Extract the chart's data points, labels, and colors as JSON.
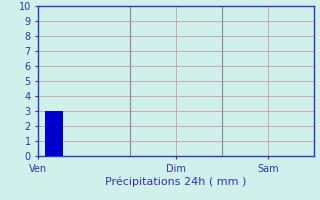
{
  "title": "",
  "xlabel": "Précipitations 24h ( mm )",
  "ylabel": "",
  "background_color": "#cff0eb",
  "grid_color": "#c8a0a0",
  "axis_color": "#3333bb",
  "bar_color": "#0000cc",
  "bar_x": 0.5,
  "bar_height": 3.0,
  "bar_width": 0.6,
  "ylim": [
    0,
    10
  ],
  "yticks": [
    0,
    1,
    2,
    3,
    4,
    5,
    6,
    7,
    8,
    9,
    10
  ],
  "xlim": [
    0,
    9
  ],
  "xtick_positions": [
    0,
    4.5,
    7.5
  ],
  "xtick_labels": [
    "Ven",
    "Dim",
    "Sam"
  ],
  "vline_positions": [
    3,
    6
  ],
  "vline_color": "#888888",
  "xlabel_color": "#3333aa",
  "xlabel_fontsize": 8,
  "tick_fontsize": 7,
  "tick_color": "#3333aa"
}
